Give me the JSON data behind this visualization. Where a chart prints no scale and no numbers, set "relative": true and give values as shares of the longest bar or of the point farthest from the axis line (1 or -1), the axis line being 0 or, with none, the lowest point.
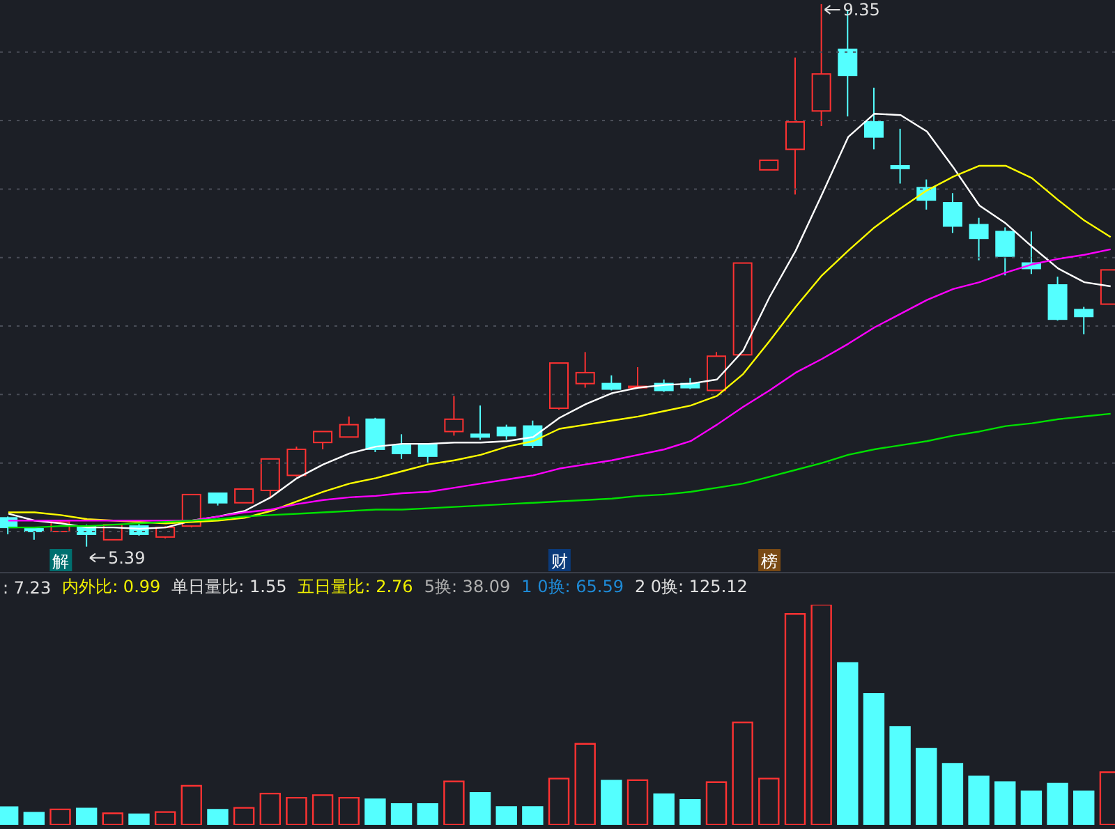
{
  "chart_data": [
    {
      "type": "candlestick",
      "categories": [
        null,
        null,
        "解",
        null,
        null,
        null,
        null,
        null,
        null,
        null,
        null,
        null,
        null,
        null,
        null,
        null,
        null,
        null,
        null,
        null,
        null,
        "财",
        null,
        null,
        null,
        null,
        null,
        null,
        null,
        "榜",
        null,
        null,
        null,
        null,
        null,
        null,
        null,
        null,
        null,
        null,
        null,
        null,
        null
      ],
      "ohlc": [
        [
          5.6,
          5.61,
          5.48,
          5.53
        ],
        [
          5.52,
          5.52,
          5.44,
          5.5
        ],
        [
          5.5,
          5.58,
          5.5,
          5.57
        ],
        [
          5.54,
          5.55,
          5.39,
          5.48
        ],
        [
          5.44,
          5.55,
          5.44,
          5.55
        ],
        [
          5.54,
          5.56,
          5.47,
          5.48
        ],
        [
          5.46,
          5.54,
          5.45,
          5.53
        ],
        [
          5.54,
          5.77,
          5.53,
          5.77
        ],
        [
          5.78,
          5.78,
          5.69,
          5.71
        ],
        [
          5.71,
          5.81,
          5.71,
          5.81
        ],
        [
          5.8,
          6.03,
          5.75,
          6.03
        ],
        [
          5.91,
          6.12,
          5.9,
          6.1
        ],
        [
          6.15,
          6.23,
          6.1,
          6.23
        ],
        [
          6.19,
          6.34,
          6.19,
          6.28
        ],
        [
          6.32,
          6.33,
          6.08,
          6.1
        ],
        [
          6.13,
          6.21,
          6.03,
          6.07
        ],
        [
          6.14,
          6.14,
          6.0,
          6.05
        ],
        [
          6.23,
          6.49,
          6.2,
          6.32
        ],
        [
          6.21,
          6.42,
          6.17,
          6.19
        ],
        [
          6.26,
          6.28,
          6.17,
          6.2
        ],
        [
          6.27,
          6.31,
          6.11,
          6.13
        ],
        [
          6.4,
          6.73,
          6.39,
          6.73
        ],
        [
          6.58,
          6.81,
          6.55,
          6.66
        ],
        [
          6.58,
          6.64,
          6.53,
          6.54
        ],
        [
          6.55,
          6.7,
          6.55,
          6.56
        ],
        [
          6.58,
          6.61,
          6.52,
          6.53
        ],
        [
          6.58,
          6.62,
          6.54,
          6.55
        ],
        [
          6.53,
          6.81,
          6.53,
          6.78
        ],
        [
          6.79,
          7.46,
          6.79,
          7.46
        ],
        [
          8.14,
          8.21,
          8.14,
          8.21
        ],
        [
          8.29,
          8.96,
          7.96,
          8.49
        ],
        [
          8.57,
          9.35,
          8.46,
          8.84
        ],
        [
          9.02,
          9.31,
          8.53,
          8.83
        ],
        [
          8.49,
          8.74,
          8.29,
          8.38
        ],
        [
          8.17,
          8.44,
          8.04,
          8.15
        ],
        [
          8.01,
          8.07,
          7.85,
          7.92
        ],
        [
          7.9,
          7.97,
          7.68,
          7.73
        ],
        [
          7.74,
          7.79,
          7.48,
          7.64
        ],
        [
          7.69,
          7.72,
          7.37,
          7.51
        ],
        [
          7.46,
          7.69,
          7.38,
          7.42
        ],
        [
          7.3,
          7.36,
          7.04,
          7.05
        ],
        [
          7.12,
          7.14,
          6.94,
          7.07
        ],
        [
          7.16,
          7.41,
          7.16,
          7.41
        ]
      ],
      "colors": [
        "#54ffff",
        "#54ffff",
        "#ff3232",
        "#54ffff",
        "#ff3232",
        "#54ffff",
        "#ff3232",
        "#ff3232",
        "#54ffff",
        "#ff3232",
        "#ff3232",
        "#ff3232",
        "#ff3232",
        "#ff3232",
        "#54ffff",
        "#54ffff",
        "#54ffff",
        "#ff3232",
        "#54ffff",
        "#54ffff",
        "#54ffff",
        "#ff3232",
        "#ff3232",
        "#54ffff",
        "#ff3232",
        "#54ffff",
        "#54ffff",
        "#ff3232",
        "#ff3232",
        "#ff3232",
        "#ff3232",
        "#ff3232",
        "#54ffff",
        "#54ffff",
        "#54ffff",
        "#54ffff",
        "#54ffff",
        "#54ffff",
        "#54ffff",
        "#54ffff",
        "#54ffff",
        "#54ffff",
        "#ff3232"
      ],
      "series": [
        {
          "type": "line",
          "color": "#ffffff",
          "values": [
            5.63,
            5.58,
            5.56,
            5.53,
            5.53,
            5.52,
            5.53,
            5.58,
            5.61,
            5.65,
            5.75,
            5.89,
            5.99,
            6.07,
            6.12,
            6.14,
            6.14,
            6.15,
            6.15,
            6.16,
            6.19,
            6.33,
            6.43,
            6.51,
            6.55,
            6.57,
            6.58,
            6.61,
            6.82,
            7.21,
            7.55,
            7.96,
            8.38,
            8.55,
            8.54,
            8.42,
            8.16,
            7.88,
            7.75,
            7.58,
            7.42,
            7.32,
            7.29
          ]
        },
        {
          "type": "line",
          "color": "#ffff00",
          "values": [
            5.64,
            5.64,
            5.62,
            5.59,
            5.58,
            5.57,
            5.56,
            5.57,
            5.58,
            5.6,
            5.65,
            5.72,
            5.79,
            5.85,
            5.89,
            5.94,
            5.99,
            6.02,
            6.06,
            6.12,
            6.16,
            6.25,
            6.28,
            6.31,
            6.34,
            6.38,
            6.42,
            6.49,
            6.65,
            6.89,
            7.14,
            7.37,
            7.55,
            7.72,
            7.86,
            7.99,
            8.09,
            8.17,
            8.17,
            8.08,
            7.92,
            7.77,
            7.65
          ]
        },
        {
          "type": "line",
          "color": "#ff00ff",
          "values": [
            5.58,
            5.58,
            5.58,
            5.58,
            5.58,
            5.58,
            5.58,
            5.58,
            5.61,
            5.64,
            5.66,
            5.7,
            5.73,
            5.75,
            5.76,
            5.78,
            5.79,
            5.82,
            5.85,
            5.88,
            5.91,
            5.96,
            5.99,
            6.02,
            6.06,
            6.1,
            6.16,
            6.28,
            6.41,
            6.53,
            6.66,
            6.76,
            6.87,
            6.99,
            7.09,
            7.19,
            7.27,
            7.32,
            7.39,
            7.45,
            7.49,
            7.52,
            7.56
          ]
        },
        {
          "type": "line",
          "color": "#00e000",
          "values": [
            5.53,
            5.53,
            5.54,
            5.54,
            5.55,
            5.56,
            5.57,
            5.58,
            5.59,
            5.61,
            5.62,
            5.63,
            5.64,
            5.65,
            5.66,
            5.66,
            5.67,
            5.68,
            5.69,
            5.7,
            5.71,
            5.72,
            5.73,
            5.74,
            5.76,
            5.77,
            5.79,
            5.82,
            5.85,
            5.9,
            5.95,
            6.0,
            6.06,
            6.1,
            6.13,
            6.16,
            6.2,
            6.23,
            6.27,
            6.29,
            6.32,
            6.34,
            6.36
          ]
        }
      ],
      "ylim": [
        5.2,
        9.38
      ],
      "yticks": [
        {
          "value": 5.5,
          "label": null
        },
        {
          "value": 6,
          "label": null
        },
        {
          "value": 6.5,
          "label": null
        },
        {
          "value": 7,
          "label": null
        },
        {
          "value": 7.5,
          "label": null
        },
        {
          "value": 8,
          "label": null
        },
        {
          "value": 8.5,
          "label": null
        },
        {
          "value": 9,
          "label": null
        }
      ],
      "grid": "y",
      "annotations": [
        "9.35",
        "5.39"
      ]
    },
    {
      "type": "bar",
      "relative": true,
      "categories": [
        null,
        null,
        null,
        null,
        null,
        null,
        null,
        null,
        null,
        null,
        null,
        null,
        null,
        null,
        null,
        null,
        null,
        null,
        null,
        null,
        null,
        null,
        null,
        null,
        null,
        null,
        null,
        null,
        null,
        null,
        null,
        null,
        null,
        null,
        null,
        null,
        null,
        null,
        null,
        null,
        null,
        null,
        null
      ],
      "values": [
        0.08,
        0.055,
        0.07,
        0.074,
        0.052,
        0.048,
        0.058,
        0.177,
        0.068,
        0.077,
        0.142,
        0.123,
        0.135,
        0.123,
        0.116,
        0.094,
        0.094,
        0.197,
        0.145,
        0.081,
        0.081,
        0.21,
        0.368,
        0.2,
        0.203,
        0.139,
        0.113,
        0.194,
        0.465,
        0.21,
        0.958,
        1,
        0.735,
        0.594,
        0.445,
        0.345,
        0.277,
        0.219,
        0.194,
        0.152,
        0.187,
        0.152,
        0.239
      ],
      "colors": [
        "#54ffff",
        "#54ffff",
        "#ff3232",
        "#54ffff",
        "#ff3232",
        "#54ffff",
        "#ff3232",
        "#ff3232",
        "#54ffff",
        "#ff3232",
        "#ff3232",
        "#ff3232",
        "#ff3232",
        "#ff3232",
        "#54ffff",
        "#54ffff",
        "#54ffff",
        "#ff3232",
        "#54ffff",
        "#54ffff",
        "#54ffff",
        "#ff3232",
        "#ff3232",
        "#54ffff",
        "#ff3232",
        "#54ffff",
        "#54ffff",
        "#ff3232",
        "#ff3232",
        "#ff3232",
        "#ff3232",
        "#ff3232",
        "#54ffff",
        "#54ffff",
        "#54ffff",
        "#54ffff",
        "#54ffff",
        "#54ffff",
        "#54ffff",
        "#54ffff",
        "#54ffff",
        "#54ffff",
        "#ff3232"
      ],
      "annotations": [
        ": 7.23",
        "内外比: 0.99",
        "单日量比: 1.55",
        "五日量比: 2.76",
        "5换: 38.09",
        "1 0换: 65.59",
        "2 0换: 125.12"
      ]
    }
  ]
}
